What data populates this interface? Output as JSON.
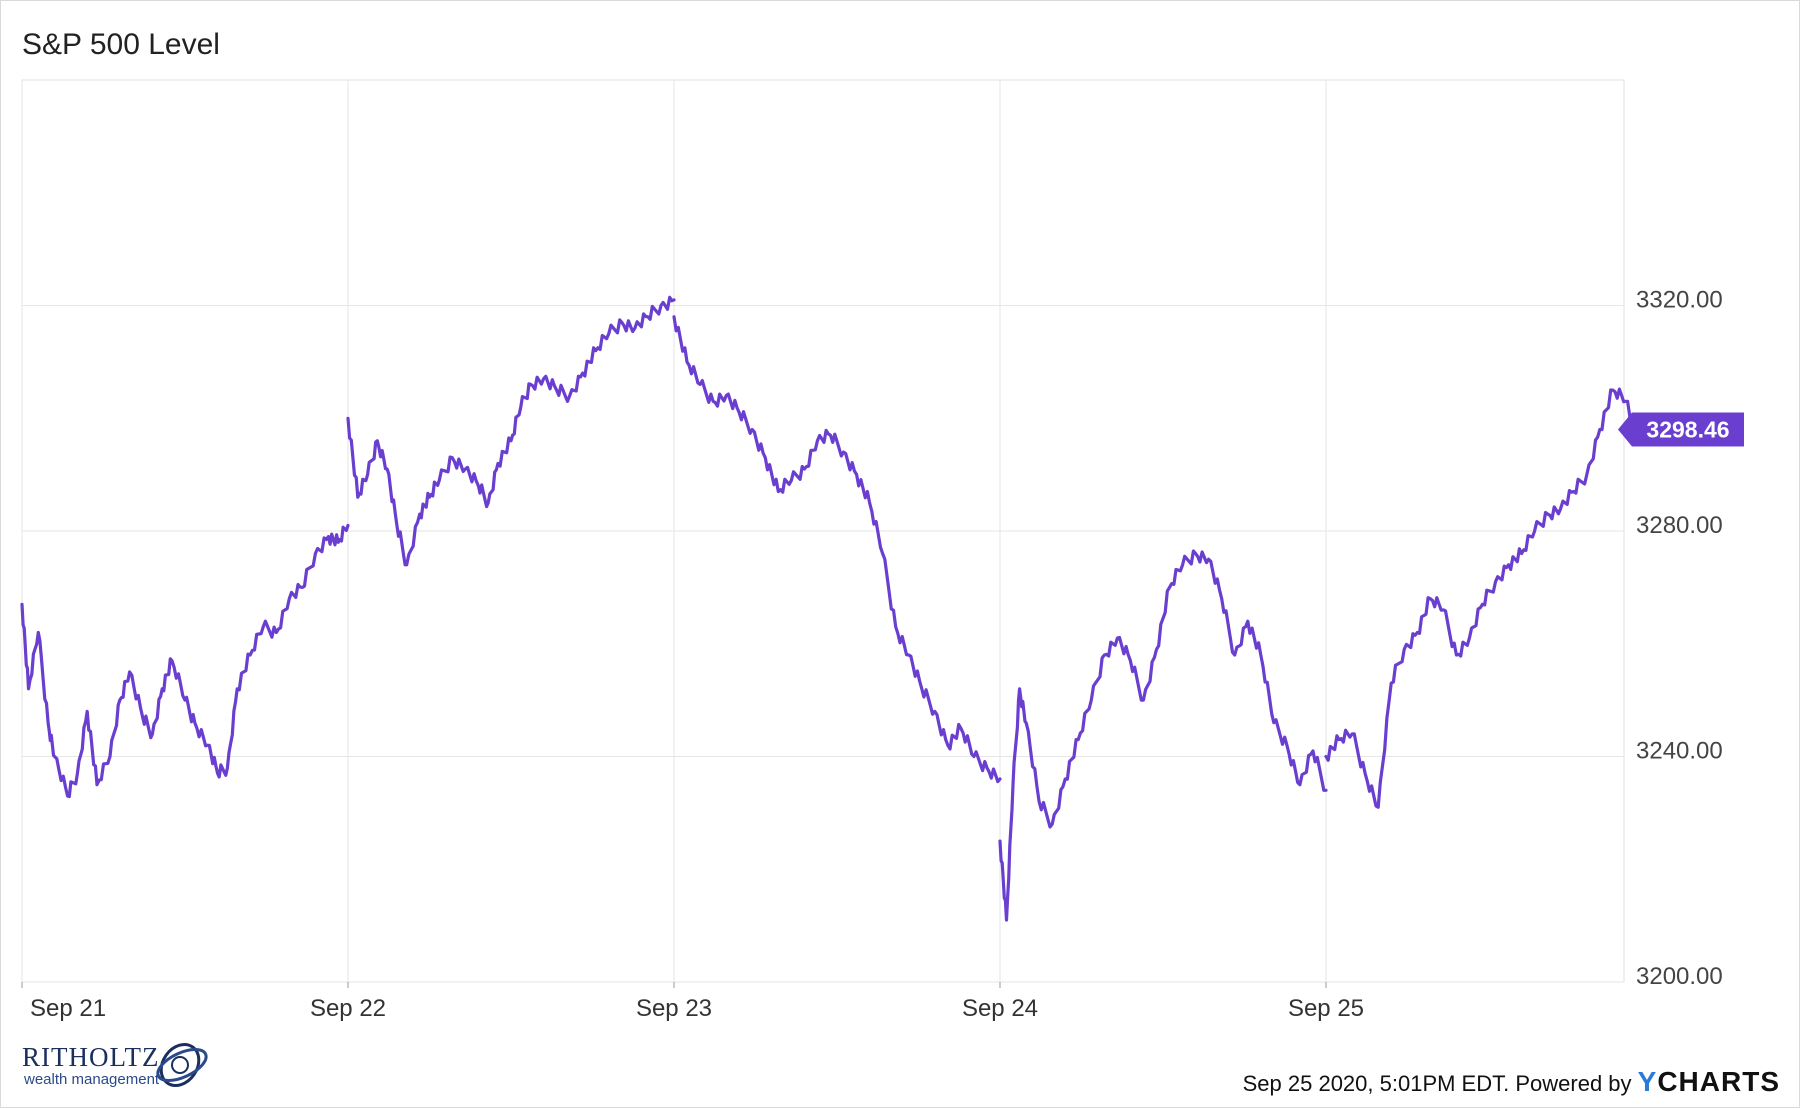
{
  "chart_data": {
    "type": "line",
    "title": "S&P 500 Level",
    "x_tick_labels": [
      "Sep 21",
      "Sep 22",
      "Sep 23",
      "Sep 24",
      "Sep 25"
    ],
    "y_tick_labels": [
      "3200.00",
      "3240.00",
      "3280.00",
      "3320.00"
    ],
    "y_ticks": [
      3200,
      3240,
      3280,
      3320
    ],
    "ylim": [
      3200,
      3360
    ],
    "grid": true,
    "y_axis_side": "right",
    "last_value_label": "3298.46",
    "series": [
      {
        "name": "",
        "color": "#6a3fd0",
        "x": [
          0.0,
          0.02,
          0.05,
          0.08,
          0.1,
          0.14,
          0.17,
          0.2,
          0.23,
          0.27,
          0.3,
          0.33,
          0.37,
          0.4,
          0.43,
          0.46,
          0.5,
          0.53,
          0.57,
          0.6,
          0.63,
          0.66,
          0.7,
          0.74,
          0.78,
          0.82,
          0.86,
          0.9,
          0.94,
          0.97,
          1.0,
          1.0,
          1.03,
          1.06,
          1.09,
          1.12,
          1.15,
          1.18,
          1.22,
          1.25,
          1.28,
          1.32,
          1.36,
          1.4,
          1.43,
          1.46,
          1.5,
          1.53,
          1.56,
          1.6,
          1.64,
          1.68,
          1.72,
          1.76,
          1.8,
          1.84,
          1.88,
          1.92,
          1.96,
          2.0,
          2.0,
          2.04,
          2.08,
          2.12,
          2.16,
          2.2,
          2.24,
          2.28,
          2.32,
          2.36,
          2.4,
          2.44,
          2.48,
          2.52,
          2.56,
          2.6,
          2.64,
          2.68,
          2.72,
          2.76,
          2.8,
          2.84,
          2.88,
          2.92,
          2.96,
          3.0,
          3.0,
          3.02,
          3.04,
          3.06,
          3.08,
          3.12,
          3.16,
          3.2,
          3.24,
          3.28,
          3.32,
          3.36,
          3.4,
          3.44,
          3.48,
          3.52,
          3.56,
          3.6,
          3.64,
          3.68,
          3.72,
          3.76,
          3.8,
          3.84,
          3.88,
          3.92,
          3.96,
          4.0,
          4.0,
          4.04,
          4.08,
          4.12,
          4.16,
          4.2,
          4.24,
          4.28,
          4.32,
          4.36,
          4.4,
          4.44,
          4.48,
          4.52,
          4.56,
          4.6,
          4.64,
          4.68,
          4.72,
          4.76,
          4.8,
          4.84,
          4.88,
          4.92,
          4.95,
          4.98
        ],
        "values": [
          3267,
          3252,
          3262,
          3246,
          3240,
          3233,
          3237,
          3248,
          3235,
          3240,
          3250,
          3255,
          3247,
          3244,
          3252,
          3257,
          3250,
          3246,
          3242,
          3237,
          3238,
          3252,
          3258,
          3263,
          3262,
          3268,
          3270,
          3276,
          3279,
          3278,
          3281,
          3300,
          3286,
          3290,
          3296,
          3291,
          3281,
          3274,
          3283,
          3286,
          3289,
          3293,
          3291,
          3288,
          3285,
          3292,
          3296,
          3302,
          3306,
          3307,
          3305,
          3304,
          3308,
          3312,
          3315,
          3317,
          3316,
          3318,
          3320,
          3321,
          3318,
          3310,
          3306,
          3303,
          3304,
          3301,
          3298,
          3293,
          3287,
          3289,
          3291,
          3296,
          3297,
          3294,
          3290,
          3285,
          3276,
          3263,
          3258,
          3252,
          3248,
          3242,
          3245,
          3240,
          3238,
          3236,
          3225,
          3211,
          3235,
          3252,
          3246,
          3232,
          3228,
          3236,
          3243,
          3250,
          3258,
          3261,
          3257,
          3250,
          3259,
          3270,
          3274,
          3276,
          3275,
          3268,
          3258,
          3264,
          3258,
          3246,
          3242,
          3235,
          3241,
          3234,
          3240,
          3243,
          3244,
          3237,
          3231,
          3253,
          3259,
          3262,
          3268,
          3266,
          3258,
          3261,
          3267,
          3271,
          3274,
          3276,
          3280,
          3283,
          3284,
          3287,
          3290,
          3298,
          3305,
          3303,
          3296,
          3298
        ]
      }
    ]
  },
  "footer": {
    "brand_name": "RITHOLTZ",
    "brand_sub": "wealth management",
    "timestamp": "Sep 25 2020, 5:01PM EDT. Powered by ",
    "provider_y": "Y",
    "provider_rest": "CHARTS"
  }
}
